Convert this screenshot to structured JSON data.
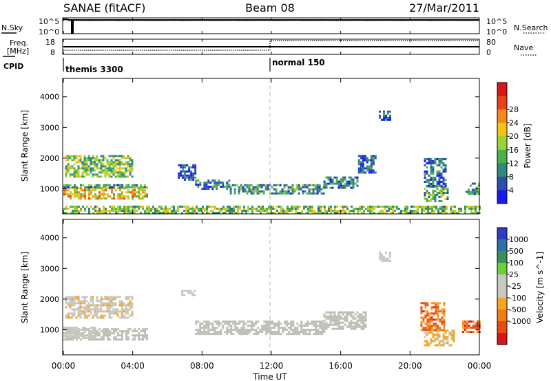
{
  "header": {
    "station": "SANAE (fitACF)",
    "beam": "Beam 08",
    "date": "27/Mar/2011"
  },
  "noise_panel": {
    "left_label": "N.Sky",
    "right_label": "N.Search",
    "ticks_left": [
      "10^5",
      "10^0"
    ],
    "ticks_right": [
      "10^5",
      "10^0"
    ]
  },
  "freq_panel": {
    "left_label_line1": "Freq.",
    "left_label_line2": "[MHz]",
    "right_label": "Nave",
    "ticks_left": [
      "18",
      "8"
    ],
    "ticks_right": [
      "80",
      "0"
    ]
  },
  "cpid_panel": {
    "label": "CPID",
    "modes": [
      {
        "name": "themis 3300",
        "start_hour": 0
      },
      {
        "name": "normal 150",
        "start_hour": 12
      }
    ]
  },
  "x_axis": {
    "label": "Time UT",
    "ticks": [
      "00:00",
      "04:00",
      "08:00",
      "12:00",
      "16:00",
      "20:00",
      "00:00"
    ]
  },
  "colors": {
    "power_scale": [
      "#1a1aee",
      "#2e4fa8",
      "#2e8a7a",
      "#4caf50",
      "#9bd23a",
      "#f2c418",
      "#f2891a",
      "#e8421a",
      "#d81818"
    ],
    "velocity_scale": [
      "#2b3fbf",
      "#2e6fa6",
      "#3a8f5a",
      "#6ccf3a",
      "#c8c8c0",
      "#c8c8c0",
      "#f5a623",
      "#ef7d17",
      "#e64a19",
      "#d81818"
    ],
    "ground_scatter": "#bdbdb5"
  },
  "chart_data": [
    {
      "type": "heatmap",
      "name": "power-panel",
      "xlabel": "",
      "ylabel": "Slant Range [km]",
      "xlim": [
        0,
        24
      ],
      "ylim": [
        180,
        4600
      ],
      "yticks": [
        "1000",
        "2000",
        "3000",
        "4000"
      ],
      "colorbar_label": "Power [dB]",
      "colorbar_ticks": [
        "4",
        "8",
        "12",
        "16",
        "20",
        "24",
        "28"
      ],
      "colorbar_range": [
        0,
        32
      ],
      "regions": [
        {
          "t0": 0.0,
          "t1": 4.8,
          "r0": 650,
          "r1": 1050,
          "level": 20
        },
        {
          "t0": 0.0,
          "t1": 4.8,
          "r0": 1050,
          "r1": 1150,
          "level": 10
        },
        {
          "t0": 0.1,
          "t1": 4.0,
          "r0": 1400,
          "r1": 2100,
          "level": 14
        },
        {
          "t0": 6.6,
          "t1": 7.6,
          "r0": 1300,
          "r1": 1800,
          "level": 6
        },
        {
          "t0": 7.6,
          "t1": 9.6,
          "r0": 1000,
          "r1": 1300,
          "level": 7
        },
        {
          "t0": 9.6,
          "t1": 15.0,
          "r0": 850,
          "r1": 1150,
          "level": 10
        },
        {
          "t0": 15.0,
          "t1": 17.0,
          "r0": 1050,
          "r1": 1400,
          "level": 8
        },
        {
          "t0": 17.0,
          "t1": 18.0,
          "r0": 1500,
          "r1": 2100,
          "level": 5
        },
        {
          "t0": 18.2,
          "t1": 18.8,
          "r0": 3250,
          "r1": 3550,
          "level": 6
        },
        {
          "t0": 20.8,
          "t1": 22.2,
          "r0": 600,
          "r1": 1100,
          "level": 12
        },
        {
          "t0": 20.8,
          "t1": 22.0,
          "r0": 1100,
          "r1": 2000,
          "level": 6
        },
        {
          "t0": 23.2,
          "t1": 24.0,
          "r0": 800,
          "r1": 1200,
          "level": 10
        },
        {
          "t0": 0.0,
          "t1": 24.0,
          "r0": 200,
          "r1": 450,
          "level": 14
        }
      ]
    },
    {
      "type": "heatmap",
      "name": "velocity-panel",
      "xlabel": "Time UT",
      "ylabel": "Slant Range [km]",
      "xlim": [
        0,
        24
      ],
      "ylim": [
        180,
        4600
      ],
      "yticks": [
        "1000",
        "2000",
        "3000",
        "4000"
      ],
      "colorbar_label": "Velocity [m s^-1]",
      "colorbar_ticks": [
        "1000",
        "500",
        "100",
        "25",
        "-25",
        "-100",
        "-500",
        "-1000"
      ],
      "colorbar_range": [
        -1300,
        1300
      ],
      "regions": [
        {
          "t0": 0.0,
          "t1": 4.8,
          "r0": 650,
          "r1": 1050,
          "class": "ground"
        },
        {
          "t0": 0.0,
          "t1": 1.8,
          "r0": 700,
          "r1": 1100,
          "class": "velocity",
          "value": 80
        },
        {
          "t0": 0.1,
          "t1": 4.0,
          "r0": 1400,
          "r1": 2100,
          "class": "velocity",
          "value": -200
        },
        {
          "t0": 6.8,
          "t1": 7.6,
          "r0": 2100,
          "r1": 2300,
          "class": "velocity",
          "value": 60
        },
        {
          "t0": 7.6,
          "t1": 15.0,
          "r0": 850,
          "r1": 1300,
          "class": "ground"
        },
        {
          "t0": 15.0,
          "t1": 17.5,
          "r0": 1050,
          "r1": 1600,
          "class": "ground"
        },
        {
          "t0": 18.2,
          "t1": 18.8,
          "r0": 3250,
          "r1": 3550,
          "class": "velocity",
          "value": 60
        },
        {
          "t0": 20.8,
          "t1": 22.5,
          "r0": 500,
          "r1": 1000,
          "class": "velocity",
          "value": -300
        },
        {
          "t0": 20.6,
          "t1": 22.0,
          "r0": 1000,
          "r1": 1900,
          "class": "velocity",
          "value": -700
        },
        {
          "t0": 23.0,
          "t1": 24.0,
          "r0": 900,
          "r1": 1300,
          "class": "velocity",
          "value": -800
        }
      ]
    }
  ]
}
